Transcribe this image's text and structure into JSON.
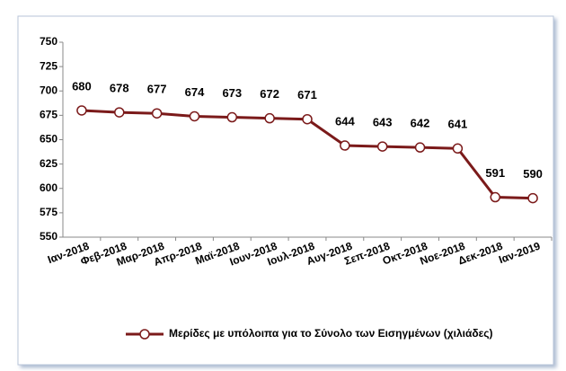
{
  "chart_data": {
    "type": "line",
    "categories": [
      "Ιαν-2018",
      "Φεβ-2018",
      "Μαρ-2018",
      "Απρ-2018",
      "Μαϊ-2018",
      "Ιουν-2018",
      "Ιουλ-2018",
      "Αυγ-2018",
      "Σεπ-2018",
      "Οκτ-2018",
      "Νοε-2018",
      "Δεκ-2018",
      "Ιαν-2019"
    ],
    "series": [
      {
        "name": "Μερίδες με υπόλοιπα για το Σύνολο των Εισηγμένων (χιλιάδες)",
        "color": "#7b1a1a",
        "values": [
          680,
          678,
          677,
          674,
          673,
          672,
          671,
          644,
          643,
          642,
          641,
          591,
          590
        ]
      }
    ],
    "ylim": [
      550,
      750
    ],
    "yticks": [
      550,
      575,
      600,
      625,
      650,
      675,
      700,
      725,
      750
    ],
    "grid": false,
    "legend": "bottom"
  }
}
